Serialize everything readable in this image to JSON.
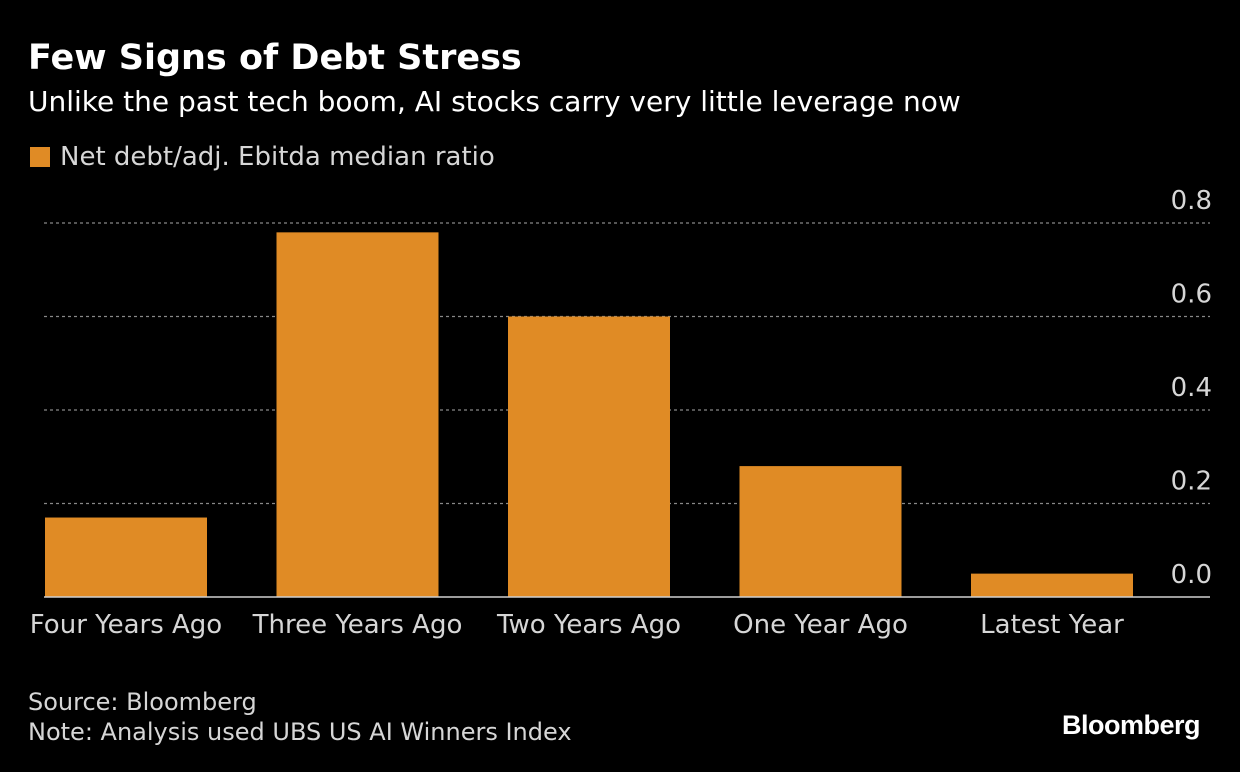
{
  "title": "Few Signs of Debt Stress",
  "subtitle": "Unlike the past tech boom, AI stocks carry very little leverage now",
  "legend_label": "Net debt/adj. Ebitda median ratio",
  "source": "Source: Bloomberg",
  "note": "Note: Analysis used UBS US AI Winners Index",
  "brand": "Bloomberg",
  "colors": {
    "bar": "#e08b25",
    "background": "#000000",
    "grid": "#888888",
    "tick": "#d6d6d6"
  },
  "chart_data": {
    "type": "bar",
    "categories": [
      "Four Years Ago",
      "Three Years Ago",
      "Two Years Ago",
      "One Year Ago",
      "Latest Year"
    ],
    "series": [
      {
        "name": "Net debt/adj. Ebitda median ratio",
        "values": [
          0.17,
          0.78,
          0.6,
          0.28,
          0.05
        ]
      }
    ],
    "ylim": [
      0,
      0.8
    ],
    "yticks": [
      "0.0",
      "0.2",
      "0.4",
      "0.6",
      "0.8"
    ],
    "ytick_values": [
      0,
      0.2,
      0.4,
      0.6,
      0.8
    ],
    "y_axis_position": "right",
    "grid": true,
    "title": "Few Signs of Debt Stress",
    "xlabel": "",
    "ylabel": ""
  }
}
